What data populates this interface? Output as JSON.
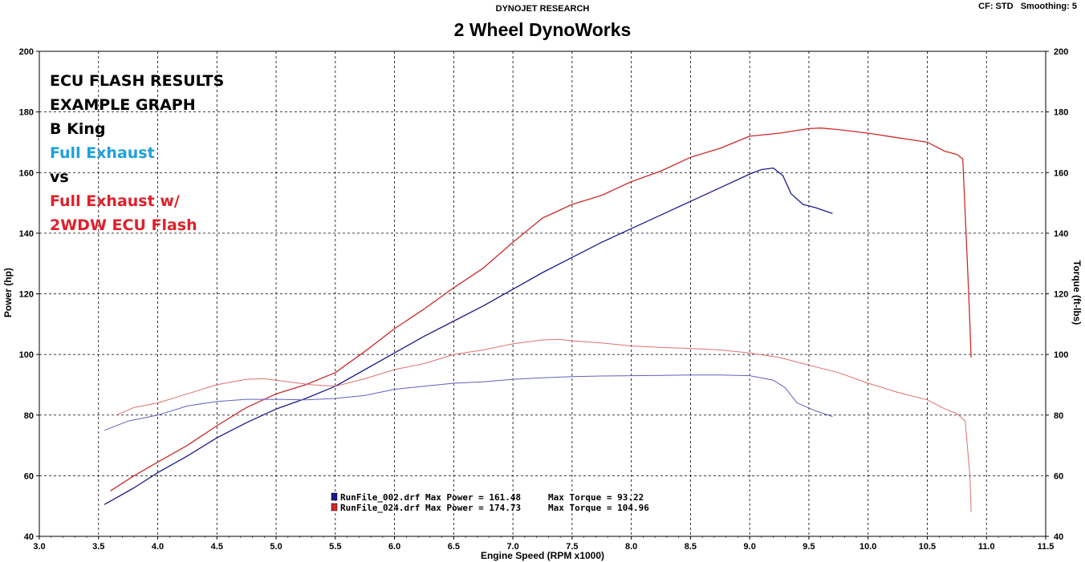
{
  "header": {
    "company": "DYNOJET RESEARCH",
    "shop": "2 Wheel DynoWorks",
    "settings": "CF: STD   Smoothing: 5"
  },
  "annotation": {
    "lines": [
      {
        "text": "ECU FLASH RESULTS",
        "color": "#000000"
      },
      {
        "text": "EXAMPLE GRAPH",
        "color": "#000000"
      },
      {
        "text": "B King",
        "color": "#000000"
      },
      {
        "text": "Full Exhaust",
        "color": "#1ea0dc"
      },
      {
        "text": "vs",
        "color": "#000000"
      },
      {
        "text": "Full Exhaust w/",
        "color": "#e0202a"
      },
      {
        "text": "2WDW ECU Flash",
        "color": "#e0202a"
      }
    ]
  },
  "legend": [
    {
      "file": "RunFile_002.drf",
      "power_text": "Max Power = 161.48",
      "torque_text": "Max Torque = 93.22",
      "color": "#1a1a8c"
    },
    {
      "file": "RunFile_024.drf",
      "power_text": "Max Power = 174.73",
      "torque_text": "Max Torque = 104.96",
      "color": "#cc2a2a"
    }
  ],
  "chart_data": {
    "type": "line",
    "xlabel": "Engine Speed (RPM x1000)",
    "ylabel_left": "Power (hp)",
    "ylabel_right": "Torque (ft-lbs)",
    "xlim": [
      3.0,
      11.5
    ],
    "ylim_left": [
      40,
      200
    ],
    "ylim_right": [
      40,
      200
    ],
    "xticks": [
      "3.0",
      "3.5",
      "4.0",
      "4.5",
      "5.0",
      "5.5",
      "6.0",
      "6.5",
      "7.0",
      "7.5",
      "8.0",
      "8.5",
      "9.0",
      "9.5",
      "10.0",
      "10.5",
      "11.0",
      "11.5"
    ],
    "yticks": [
      "40",
      "60",
      "80",
      "100",
      "120",
      "140",
      "160",
      "180",
      "200"
    ],
    "grid": true,
    "series": [
      {
        "name": "RunFile_002.drf",
        "quantity": "Power",
        "axis": "left",
        "color": "#1a1a8c",
        "x": [
          3.55,
          3.8,
          4.0,
          4.25,
          4.5,
          4.75,
          5.0,
          5.25,
          5.5,
          5.75,
          6.0,
          6.25,
          6.5,
          6.75,
          7.0,
          7.25,
          7.5,
          7.75,
          8.0,
          8.25,
          8.5,
          8.75,
          9.0,
          9.1,
          9.2,
          9.28,
          9.35,
          9.45,
          9.55,
          9.7
        ],
        "y": [
          50.5,
          56,
          61,
          66.5,
          72.5,
          77.5,
          82,
          85.5,
          89.5,
          95,
          100.5,
          106,
          111,
          116,
          121.5,
          127,
          132,
          137,
          141.5,
          146,
          150.5,
          155,
          159.5,
          161,
          161.5,
          159,
          153,
          149.5,
          148.5,
          146.5
        ]
      },
      {
        "name": "RunFile_024.drf",
        "quantity": "Power",
        "axis": "left",
        "color": "#cc2a2a",
        "x": [
          3.6,
          3.8,
          4.0,
          4.25,
          4.5,
          4.75,
          5.0,
          5.25,
          5.5,
          5.75,
          6.0,
          6.25,
          6.5,
          6.75,
          7.0,
          7.25,
          7.5,
          7.75,
          8.0,
          8.25,
          8.5,
          8.75,
          9.0,
          9.25,
          9.5,
          9.6,
          9.75,
          10.0,
          10.25,
          10.5,
          10.65,
          10.75,
          10.8,
          10.85,
          10.87
        ],
        "y": [
          55,
          60,
          64.5,
          70,
          76.5,
          82.5,
          87,
          90,
          94,
          101,
          108.5,
          115,
          122,
          128.5,
          137,
          145,
          149.5,
          152.5,
          157,
          160.5,
          165,
          168,
          172,
          173,
          174.5,
          174.7,
          174.2,
          173,
          171.5,
          170,
          167,
          166,
          164.5,
          120,
          99
        ]
      },
      {
        "name": "RunFile_002.drf",
        "quantity": "Torque",
        "axis": "right",
        "color": "#6060c0",
        "x": [
          3.55,
          3.75,
          4.0,
          4.25,
          4.5,
          4.75,
          5.0,
          5.25,
          5.5,
          5.75,
          6.0,
          6.25,
          6.5,
          6.75,
          7.0,
          7.25,
          7.5,
          7.75,
          8.0,
          8.25,
          8.5,
          8.75,
          9.0,
          9.2,
          9.3,
          9.4,
          9.55,
          9.7
        ],
        "y": [
          75,
          78,
          80,
          83,
          84.5,
          85.2,
          85.2,
          85,
          85.5,
          86.5,
          88.5,
          89.5,
          90.5,
          91,
          91.8,
          92.3,
          92.7,
          92.9,
          93,
          93.1,
          93.2,
          93.2,
          93,
          91.5,
          89,
          84,
          81.5,
          79.5
        ]
      },
      {
        "name": "RunFile_024.drf",
        "quantity": "Torque",
        "axis": "right",
        "color": "#e07070",
        "x": [
          3.65,
          3.8,
          4.0,
          4.25,
          4.5,
          4.75,
          4.9,
          5.1,
          5.3,
          5.5,
          5.75,
          6.0,
          6.25,
          6.5,
          6.75,
          7.0,
          7.25,
          7.4,
          7.5,
          7.75,
          8.0,
          8.25,
          8.5,
          8.75,
          9.0,
          9.25,
          9.5,
          9.75,
          10.0,
          10.25,
          10.5,
          10.65,
          10.75,
          10.82,
          10.86,
          10.87
        ],
        "y": [
          80,
          82.5,
          84,
          87,
          90,
          91.8,
          92,
          91,
          90,
          89.5,
          92,
          95,
          97,
          100,
          101.5,
          103.5,
          104.8,
          104.96,
          104.5,
          103.8,
          102.8,
          102.3,
          102,
          101.5,
          100.5,
          99,
          96.5,
          94,
          90.5,
          87.5,
          85,
          82,
          80.5,
          78,
          60,
          48
        ]
      }
    ]
  }
}
